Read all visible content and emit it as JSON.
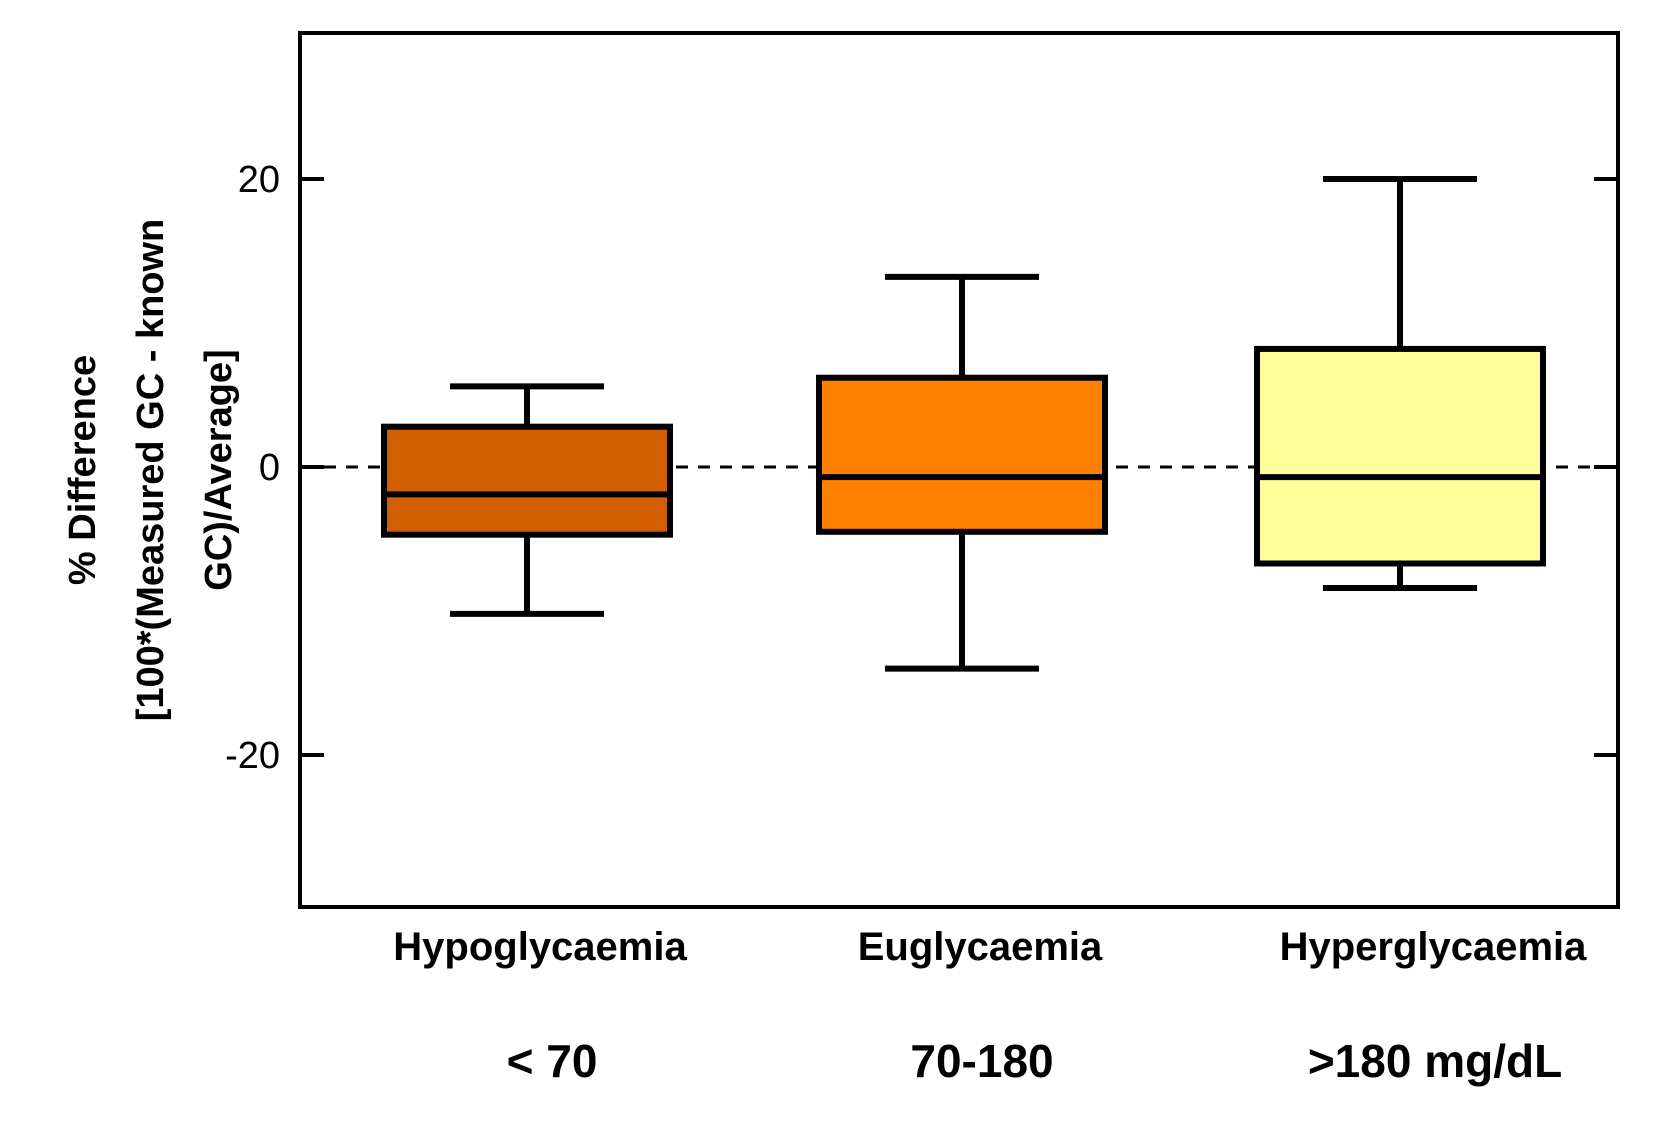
{
  "chart_data": {
    "type": "box",
    "title": "",
    "ylabel_line1": "% Difference",
    "ylabel_line2": "[100*(Measured GC - known",
    "ylabel_line3": "GC)/Average]",
    "xlabel": "",
    "ylim": [
      -30,
      30
    ],
    "yticks": [
      -20,
      0,
      20
    ],
    "ytick_labels": [
      "-20",
      "0",
      "20"
    ],
    "reference_line": {
      "y": 0,
      "style": "dashed"
    },
    "grid": false,
    "categories": [
      "Hypoglycaemia",
      "Euglycaemia",
      "Hyperglycaemia"
    ],
    "ranges": [
      "< 70",
      "70-180",
      ">180 mg/dL"
    ],
    "boxes": [
      {
        "category": "Hypoglycaemia",
        "whisker_low": -10.2,
        "q1": -4.7,
        "median": -1.9,
        "q3": 2.8,
        "whisker_high": 5.6,
        "color": "#d45f00"
      },
      {
        "category": "Euglycaemia",
        "whisker_low": -14.0,
        "q1": -4.5,
        "median": -0.7,
        "q3": 6.2,
        "whisker_high": 13.2,
        "color": "#ff7f00"
      },
      {
        "category": "Hyperglycaemia",
        "whisker_low": -8.4,
        "q1": -6.7,
        "median": -0.7,
        "q3": 8.2,
        "whisker_high": 20.0,
        "color": "#ffff99"
      }
    ]
  }
}
